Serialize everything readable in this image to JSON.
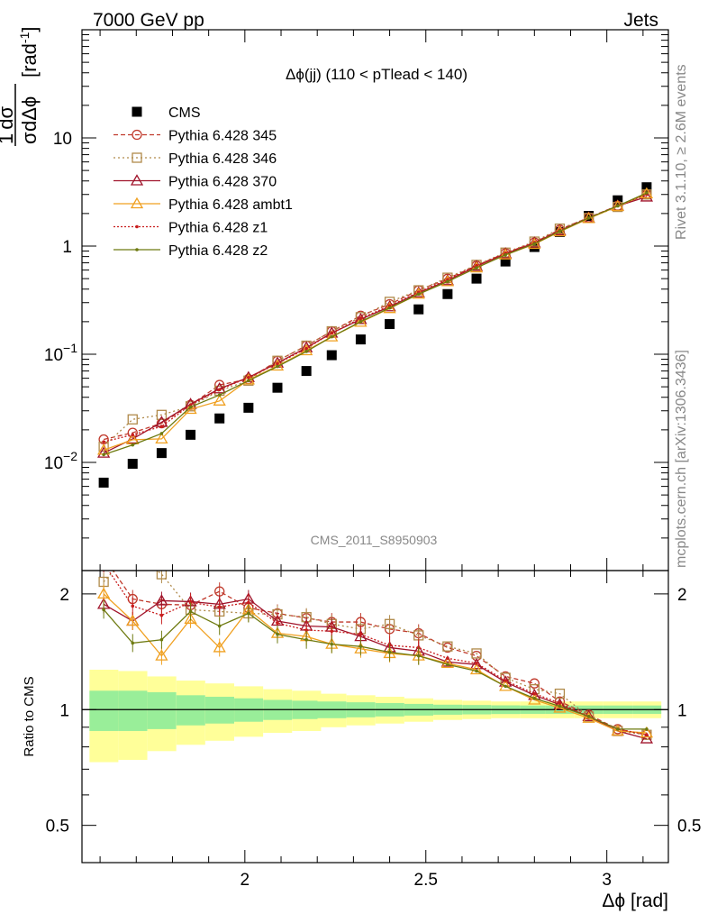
{
  "header": {
    "left": "7000 GeV pp",
    "right": "Jets"
  },
  "side": {
    "rivet": "Rivet 3.1.10, ≥ 2.6M events",
    "mcplots": "mcplots.cern.ch [arXiv:1306.3436]"
  },
  "analysis_tag": "CMS_2011_S8950903",
  "chart_data": [
    {
      "type": "scatter",
      "panel": "main",
      "title": "Δϕ(jj) (110 < pTlead <  140)",
      "ylabel": "1/σ dσ/dΔϕ [rad⁻¹]",
      "yscale": "log",
      "xlim": [
        1.55,
        3.17
      ],
      "ylim": [
        0.001,
        100
      ],
      "yticks": [
        {
          "v": 0.01,
          "base": "10",
          "exp": "−2"
        },
        {
          "v": 0.1,
          "base": "10",
          "exp": "−1"
        },
        {
          "v": 1,
          "base": "1",
          "exp": ""
        },
        {
          "v": 10,
          "base": "10",
          "exp": ""
        }
      ],
      "legend_position": "top-left",
      "x": [
        1.61,
        1.69,
        1.77,
        1.85,
        1.93,
        2.01,
        2.09,
        2.17,
        2.24,
        2.32,
        2.4,
        2.48,
        2.56,
        2.64,
        2.72,
        2.8,
        2.87,
        2.95,
        3.03,
        3.11
      ],
      "series": [
        {
          "name": "CMS",
          "color": "#000000",
          "marker": "square-filled",
          "dash": "",
          "values": [
            0.0065,
            0.0097,
            0.0122,
            0.018,
            0.0255,
            0.032,
            0.049,
            0.07,
            0.098,
            0.137,
            0.19,
            0.26,
            0.36,
            0.5,
            0.72,
            0.98,
            1.35,
            1.9,
            2.65,
            3.5
          ]
        },
        {
          "name": "Pythia 6.428 345",
          "color": "#c0392b",
          "marker": "circle-open",
          "dash": "5,3",
          "values": [
            0.0163,
            0.0188,
            0.023,
            0.034,
            0.052,
            0.059,
            0.087,
            0.12,
            0.163,
            0.227,
            0.29,
            0.39,
            0.5,
            0.66,
            0.86,
            1.08,
            1.42,
            1.84,
            2.36,
            3.0
          ]
        },
        {
          "name": "Pythia 6.428 346",
          "color": "#b08a4a",
          "marker": "square-open",
          "dash": "2,3",
          "values": [
            0.014,
            0.025,
            0.0275,
            0.033,
            0.046,
            0.057,
            0.087,
            0.12,
            0.163,
            0.22,
            0.305,
            0.39,
            0.51,
            0.67,
            0.87,
            1.1,
            1.45,
            1.82,
            2.3,
            3.0
          ]
        },
        {
          "name": "Pythia 6.428 370",
          "color": "#a0142b",
          "marker": "triangle-open",
          "dash": "",
          "values": [
            0.0122,
            0.0165,
            0.0235,
            0.0345,
            0.048,
            0.061,
            0.083,
            0.115,
            0.157,
            0.21,
            0.275,
            0.37,
            0.48,
            0.65,
            0.85,
            1.07,
            1.39,
            1.82,
            2.35,
            2.85
          ]
        },
        {
          "name": "Pythia 6.428 ambt1",
          "color": "#f0a020",
          "marker": "triangle-open",
          "dash": "",
          "values": [
            0.013,
            0.0162,
            0.0165,
            0.031,
            0.037,
            0.058,
            0.078,
            0.108,
            0.145,
            0.198,
            0.265,
            0.36,
            0.47,
            0.63,
            0.83,
            1.04,
            1.36,
            1.8,
            2.33,
            3.05
          ]
        },
        {
          "name": "Pythia 6.428 z1",
          "color": "#c81e1e",
          "marker": "dot",
          "dash": "2,2",
          "values": [
            0.0155,
            0.018,
            0.0215,
            0.034,
            0.047,
            0.061,
            0.082,
            0.113,
            0.157,
            0.215,
            0.28,
            0.375,
            0.49,
            0.66,
            0.86,
            1.08,
            1.4,
            1.82,
            2.37,
            3.0
          ]
        },
        {
          "name": "Pythia 6.428 z2",
          "color": "#6e7a10",
          "marker": "dot",
          "dash": "",
          "values": [
            0.0118,
            0.0145,
            0.0185,
            0.0325,
            0.042,
            0.057,
            0.077,
            0.106,
            0.145,
            0.2,
            0.268,
            0.36,
            0.47,
            0.63,
            0.83,
            1.05,
            1.37,
            1.82,
            2.35,
            3.1
          ]
        }
      ]
    },
    {
      "type": "line",
      "panel": "ratio",
      "ylabel": "Ratio to CMS",
      "xlabel": "Δϕ [rad]",
      "yscale": "log",
      "xlim": [
        1.55,
        3.17
      ],
      "ylim": [
        0.4,
        2.3
      ],
      "xticks": [
        "2",
        "2.5",
        "3"
      ],
      "yticks": [
        "0.5",
        "1",
        "2"
      ],
      "bands": {
        "inner": [
          0.12,
          0.12,
          0.11,
          0.09,
          0.08,
          0.07,
          0.06,
          0.055,
          0.05,
          0.045,
          0.04,
          0.035,
          0.03,
          0.028,
          0.026,
          0.025,
          0.025,
          0.025,
          0.025,
          0.025
        ],
        "outer": [
          0.27,
          0.26,
          0.22,
          0.19,
          0.17,
          0.15,
          0.13,
          0.12,
          0.1,
          0.09,
          0.08,
          0.07,
          0.06,
          0.055,
          0.05,
          0.05,
          0.05,
          0.05,
          0.05,
          0.05
        ]
      },
      "series": [
        {
          "name": "Pythia 6.428 345",
          "values": [
            2.5,
            1.94,
            1.88,
            1.87,
            2.03,
            1.84,
            1.78,
            1.73,
            1.69,
            1.69,
            1.62,
            1.58,
            1.45,
            1.38,
            1.22,
            1.17,
            1.05,
            0.97,
            0.89,
            0.86
          ]
        },
        {
          "name": "Pythia 6.428 346",
          "values": [
            2.15,
            2.6,
            2.25,
            1.82,
            1.8,
            1.78,
            1.77,
            1.74,
            1.67,
            1.62,
            1.67,
            1.56,
            1.46,
            1.4,
            1.21,
            1.13,
            1.1,
            0.96,
            0.88,
            0.86
          ]
        },
        {
          "name": "Pythia 6.428 370",
          "values": [
            1.88,
            1.7,
            1.92,
            1.91,
            1.88,
            1.94,
            1.7,
            1.65,
            1.64,
            1.55,
            1.45,
            1.42,
            1.33,
            1.31,
            1.18,
            1.09,
            1.03,
            0.96,
            0.88,
            0.84
          ]
        },
        {
          "name": "Pythia 6.428 ambt1",
          "values": [
            2.0,
            1.7,
            1.38,
            1.72,
            1.45,
            1.82,
            1.58,
            1.55,
            1.48,
            1.44,
            1.4,
            1.38,
            1.32,
            1.27,
            1.15,
            1.06,
            1.01,
            0.95,
            0.88,
            0.87
          ]
        },
        {
          "name": "Pythia 6.428 z1",
          "values": [
            2.4,
            1.86,
            1.76,
            1.9,
            1.85,
            1.9,
            1.68,
            1.61,
            1.6,
            1.57,
            1.47,
            1.45,
            1.36,
            1.32,
            1.19,
            1.1,
            1.04,
            0.96,
            0.89,
            0.86
          ]
        },
        {
          "name": "Pythia 6.428 z2",
          "values": [
            1.82,
            1.49,
            1.52,
            1.8,
            1.65,
            1.78,
            1.57,
            1.52,
            1.48,
            1.46,
            1.41,
            1.38,
            1.31,
            1.26,
            1.15,
            1.07,
            1.02,
            0.96,
            0.89,
            0.89
          ]
        }
      ]
    }
  ]
}
